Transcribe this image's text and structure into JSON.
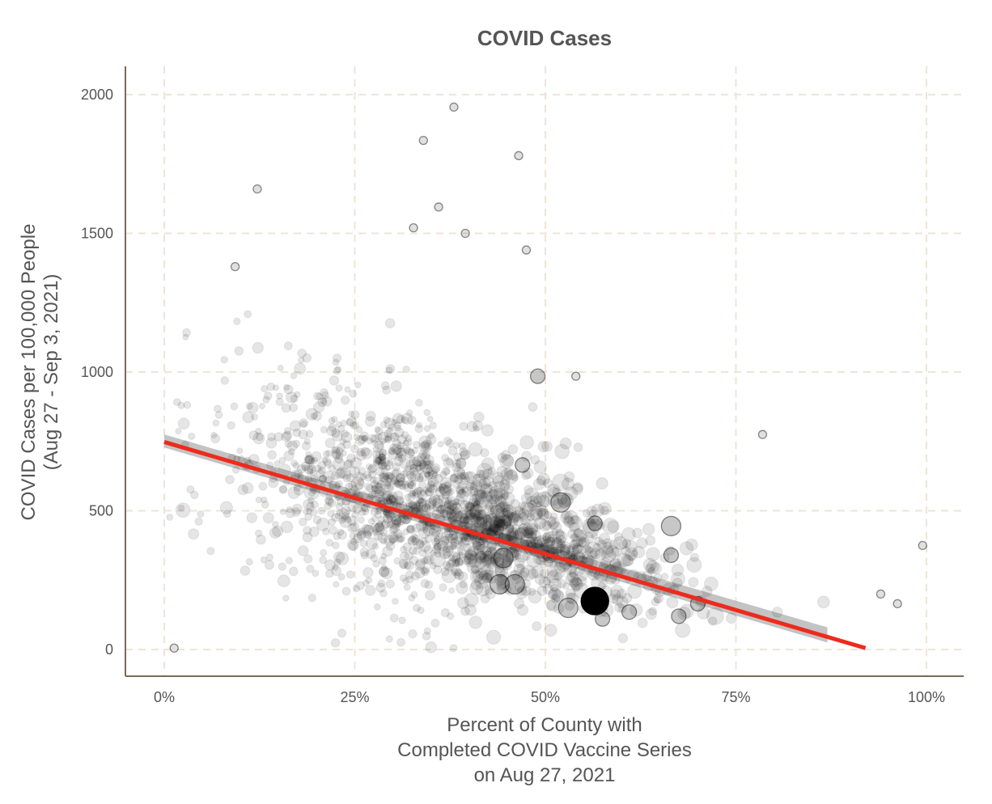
{
  "chart_data": {
    "type": "scatter",
    "title": "COVID Cases",
    "xlabel": [
      "Percent of County with",
      "Completed COVID Vaccine Series",
      "on Aug 27, 2021"
    ],
    "ylabel": [
      "COVID Cases per 100,000 People",
      "(Aug 27 - Sep 3, 2021)"
    ],
    "x_range": [
      0,
      1
    ],
    "y_range": [
      -100,
      2100
    ],
    "x_ticks": [
      0,
      0.25,
      0.5,
      0.75,
      1.0
    ],
    "x_tick_labels": [
      "0%",
      "25%",
      "50%",
      "75%",
      "100%"
    ],
    "y_ticks": [
      0,
      500,
      1000,
      1500,
      2000
    ],
    "y_tick_labels": [
      "0",
      "500",
      "1000",
      "1500",
      "2000"
    ],
    "grid": true,
    "colors": {
      "point": "#000000",
      "trend": "#ee2a1c",
      "band": "#b9b9b9",
      "grid": "#efe4d6",
      "axis": "#7b6a58",
      "text": "#555555"
    },
    "trend_line": {
      "x": [
        0.0,
        0.92
      ],
      "y": [
        748,
        5
      ]
    },
    "confidence_band": {
      "x": [
        0.0,
        0.87
      ],
      "upper": [
        775,
        80
      ],
      "lower": [
        728,
        25
      ]
    },
    "highlighted_points": [
      {
        "x": 0.565,
        "y": 175,
        "size": "largest"
      },
      {
        "x": 0.53,
        "y": 150,
        "size": "large"
      },
      {
        "x": 0.445,
        "y": 330,
        "size": "large"
      },
      {
        "x": 0.665,
        "y": 445,
        "size": "large"
      },
      {
        "x": 0.665,
        "y": 340,
        "size": "medium"
      },
      {
        "x": 0.52,
        "y": 530,
        "size": "large"
      },
      {
        "x": 0.47,
        "y": 665,
        "size": "medium"
      },
      {
        "x": 0.44,
        "y": 235,
        "size": "large"
      },
      {
        "x": 0.46,
        "y": 235,
        "size": "large"
      },
      {
        "x": 0.49,
        "y": 985,
        "size": "medium"
      },
      {
        "x": 0.61,
        "y": 135,
        "size": "medium"
      },
      {
        "x": 0.675,
        "y": 120,
        "size": "medium"
      },
      {
        "x": 0.565,
        "y": 455,
        "size": "medium"
      },
      {
        "x": 0.7,
        "y": 165,
        "size": "medium"
      },
      {
        "x": 0.575,
        "y": 110,
        "size": "medium"
      },
      {
        "x": 0.94,
        "y": 200,
        "size": "small"
      },
      {
        "x": 0.962,
        "y": 165,
        "size": "small"
      },
      {
        "x": 0.995,
        "y": 375,
        "size": "small"
      },
      {
        "x": 0.785,
        "y": 775,
        "size": "small"
      },
      {
        "x": 0.38,
        "y": 1955,
        "size": "small"
      },
      {
        "x": 0.34,
        "y": 1835,
        "size": "small"
      },
      {
        "x": 0.465,
        "y": 1780,
        "size": "small"
      },
      {
        "x": 0.122,
        "y": 1660,
        "size": "small"
      },
      {
        "x": 0.36,
        "y": 1595,
        "size": "small"
      },
      {
        "x": 0.327,
        "y": 1520,
        "size": "small"
      },
      {
        "x": 0.395,
        "y": 1500,
        "size": "small"
      },
      {
        "x": 0.475,
        "y": 1440,
        "size": "small"
      },
      {
        "x": 0.093,
        "y": 1380,
        "size": "small"
      },
      {
        "x": 0.013,
        "y": 5,
        "size": "small"
      },
      {
        "x": 0.54,
        "y": 985,
        "size": "small"
      }
    ],
    "background_cloud": {
      "description_of_distribution": "about 1750 counties; dense around 25-55% vaccinated and 100-1000 cases",
      "n": 1750
    }
  }
}
